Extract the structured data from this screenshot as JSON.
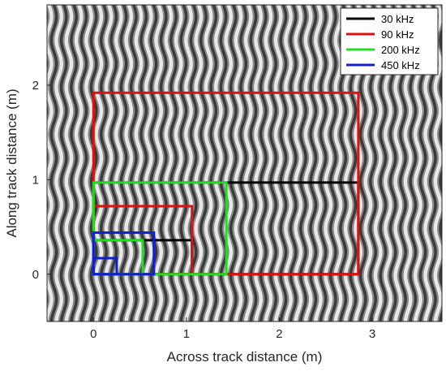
{
  "chart_data": {
    "type": "line",
    "title": "",
    "xlabel": "Across track distance (m)",
    "ylabel": "Along track distance (m)",
    "xlim": [
      -0.5,
      3.75
    ],
    "ylim": [
      -0.5,
      2.85
    ],
    "xticks": [
      0,
      1,
      2,
      3
    ],
    "yticks": [
      0,
      1,
      2
    ],
    "grid": false,
    "background": "sinusoidal grayscale stripe pattern",
    "legend": {
      "placement": "top-right",
      "entries": [
        {
          "name": "30 kHz",
          "color": "#000000"
        },
        {
          "name": "90 kHz",
          "color": "#e01010"
        },
        {
          "name": "200 kHz",
          "color": "#22dd22"
        },
        {
          "name": "450 kHz",
          "color": "#1020d0"
        }
      ]
    },
    "series": [
      {
        "name": "30 kHz",
        "color": "#000000",
        "rectangles": [
          {
            "x": [
              0,
              2.85
            ],
            "y": [
              0,
              0.97
            ]
          },
          {
            "x": [
              0,
              1.06
            ],
            "y": [
              0,
              0.36
            ]
          }
        ]
      },
      {
        "name": "90 kHz",
        "color": "#e01010",
        "rectangles": [
          {
            "x": [
              0,
              2.85
            ],
            "y": [
              0,
              1.92
            ]
          },
          {
            "x": [
              0,
              1.06
            ],
            "y": [
              0,
              0.72
            ]
          }
        ]
      },
      {
        "name": "200 kHz",
        "color": "#22dd22",
        "rectangles": [
          {
            "x": [
              0,
              1.43
            ],
            "y": [
              0,
              0.97
            ]
          },
          {
            "x": [
              0,
              0.53
            ],
            "y": [
              0,
              0.36
            ]
          }
        ]
      },
      {
        "name": "450 kHz",
        "color": "#1020d0",
        "rectangles": [
          {
            "x": [
              0,
              0.65
            ],
            "y": [
              0,
              0.44
            ]
          },
          {
            "x": [
              0,
              0.25
            ],
            "y": [
              0,
              0.17
            ]
          }
        ]
      }
    ]
  }
}
